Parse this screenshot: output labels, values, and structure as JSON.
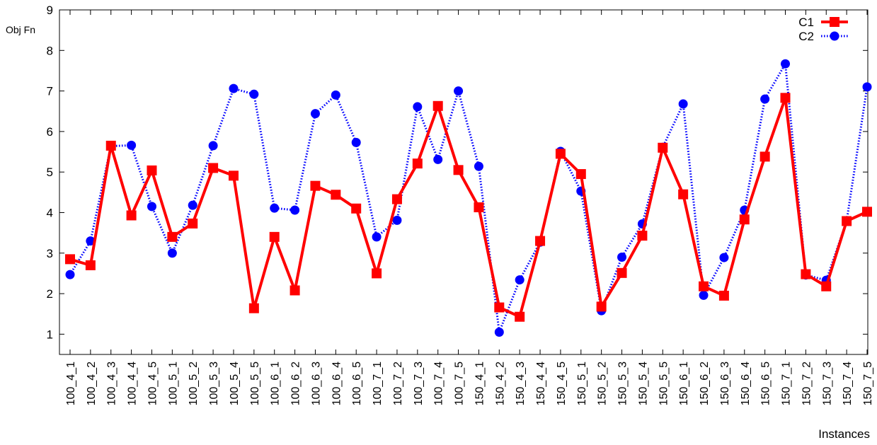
{
  "chart_data": {
    "type": "line",
    "title": "",
    "xlabel": "Instances",
    "ylabel": "Obj Fn",
    "ylim": [
      0.5,
      9
    ],
    "yticks": [
      1,
      2,
      3,
      4,
      5,
      6,
      7,
      8,
      9
    ],
    "grid": false,
    "legend_position": "top-right",
    "categories": [
      "100_4_1",
      "100_4_2",
      "100_4_3",
      "100_4_4",
      "100_4_5",
      "100_5_1",
      "100_5_2",
      "100_5_3",
      "100_5_4",
      "100_5_5",
      "100_6_1",
      "100_6_2",
      "100_6_3",
      "100_6_4",
      "100_6_5",
      "100_7_1",
      "100_7_2",
      "100_7_3",
      "100_7_4",
      "100_7_5",
      "150_4_1",
      "150_4_2",
      "150_4_3",
      "150_4_4",
      "150_4_5",
      "150_5_1",
      "150_5_2",
      "150_5_3",
      "150_5_4",
      "150_5_5",
      "150_6_1",
      "150_6_2",
      "150_6_3",
      "150_6_4",
      "150_6_5",
      "150_7_1",
      "150_7_2",
      "150_7_3",
      "150_7_4",
      "150_7_5"
    ],
    "series": [
      {
        "name": "C1",
        "color": "#ff0000",
        "marker": "square",
        "line": "solid",
        "values": [
          2.85,
          2.7,
          5.65,
          3.93,
          5.04,
          3.4,
          3.73,
          5.1,
          4.91,
          1.64,
          3.4,
          2.08,
          4.66,
          4.44,
          4.1,
          2.5,
          4.33,
          5.21,
          6.63,
          5.05,
          4.13,
          1.66,
          1.43,
          3.3,
          5.45,
          4.95,
          1.68,
          2.51,
          3.43,
          5.6,
          4.45,
          2.18,
          1.95,
          3.83,
          5.38,
          6.83,
          2.48,
          2.18,
          3.79,
          4.02
        ]
      },
      {
        "name": "C2",
        "color": "#0000ff",
        "marker": "circle",
        "line": "dotted",
        "values": [
          2.47,
          3.3,
          5.64,
          5.66,
          4.15,
          3.0,
          4.18,
          5.65,
          7.06,
          6.92,
          4.11,
          4.06,
          6.44,
          6.9,
          5.73,
          3.4,
          3.81,
          6.61,
          5.31,
          7.0,
          5.14,
          1.05,
          2.34,
          3.27,
          5.51,
          4.53,
          1.58,
          2.9,
          3.72,
          5.61,
          6.68,
          1.96,
          2.89,
          4.06,
          6.8,
          7.67,
          2.46,
          2.33,
          3.79,
          7.1
        ]
      }
    ]
  }
}
